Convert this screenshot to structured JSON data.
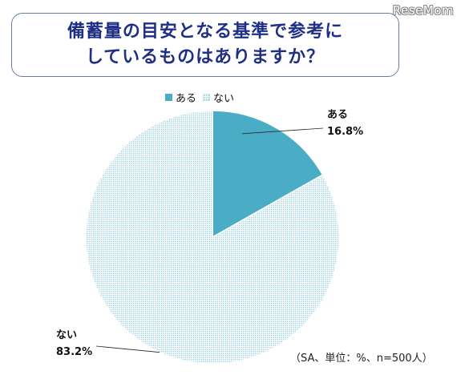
{
  "watermark": "ReseMom",
  "title": {
    "line1": "備蓄量の目安となる基準で参考に",
    "line2": "しているものはありますか？"
  },
  "colors": {
    "aru": "#4bacc6",
    "nai_dots": "#8ecde0",
    "title": "#1f2f86",
    "border": "#6a7aa8"
  },
  "chart_data": {
    "type": "pie",
    "categories": [
      "ある",
      "ない"
    ],
    "values": [
      16.8,
      83.2
    ],
    "legend_position": "top-center",
    "data_labels": [
      {
        "name": "ある",
        "value": "16.8%"
      },
      {
        "name": "ない",
        "value": "83.2%"
      }
    ]
  },
  "footnote": "（SA、単位：%、n=500人）"
}
